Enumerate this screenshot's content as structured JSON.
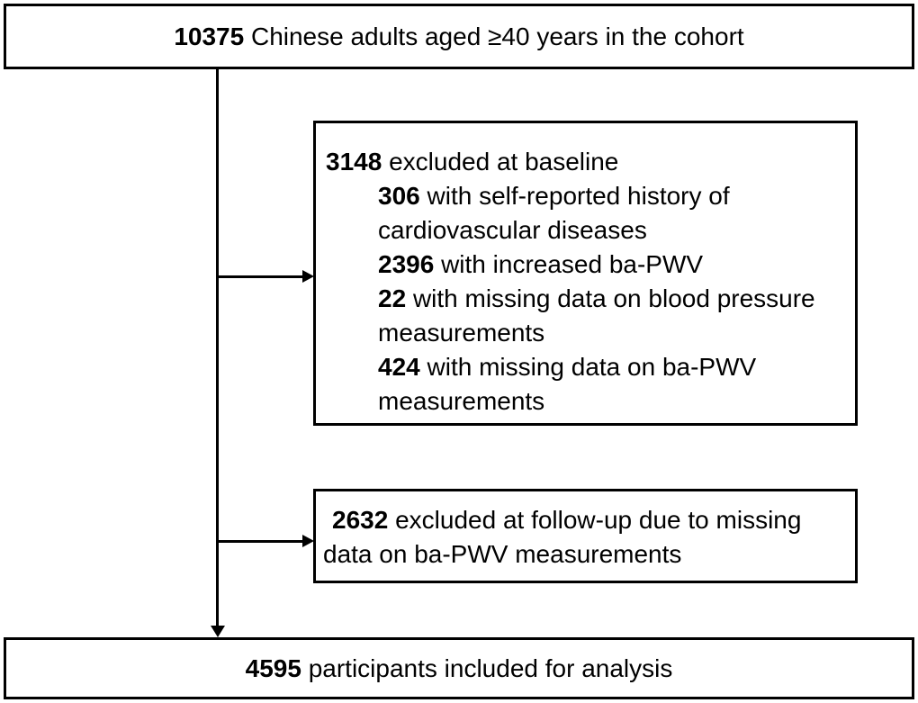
{
  "colors": {
    "ink": "#000000",
    "background": "#ffffff"
  },
  "boxes": {
    "cohort": {
      "number": "10375",
      "text": "Chinese adults aged ≥40 years in the cohort"
    },
    "baseline_excluded": {
      "header": {
        "number": "3148",
        "text": "excluded at baseline"
      },
      "items": [
        {
          "number": "306",
          "text": "with self-reported history of cardiovascular diseases"
        },
        {
          "number": "2396",
          "text": "with increased ba-PWV"
        },
        {
          "number": "22",
          "text": "with missing data on blood pressure measurements"
        },
        {
          "number": "424",
          "text": "with missing data on ba-PWV measurements"
        }
      ]
    },
    "followup_excluded": {
      "number": "2632",
      "text": "excluded at follow-up due to missing data on ba-PWV measurements"
    },
    "analysis": {
      "number": "4595",
      "text": "participants included for analysis"
    }
  }
}
